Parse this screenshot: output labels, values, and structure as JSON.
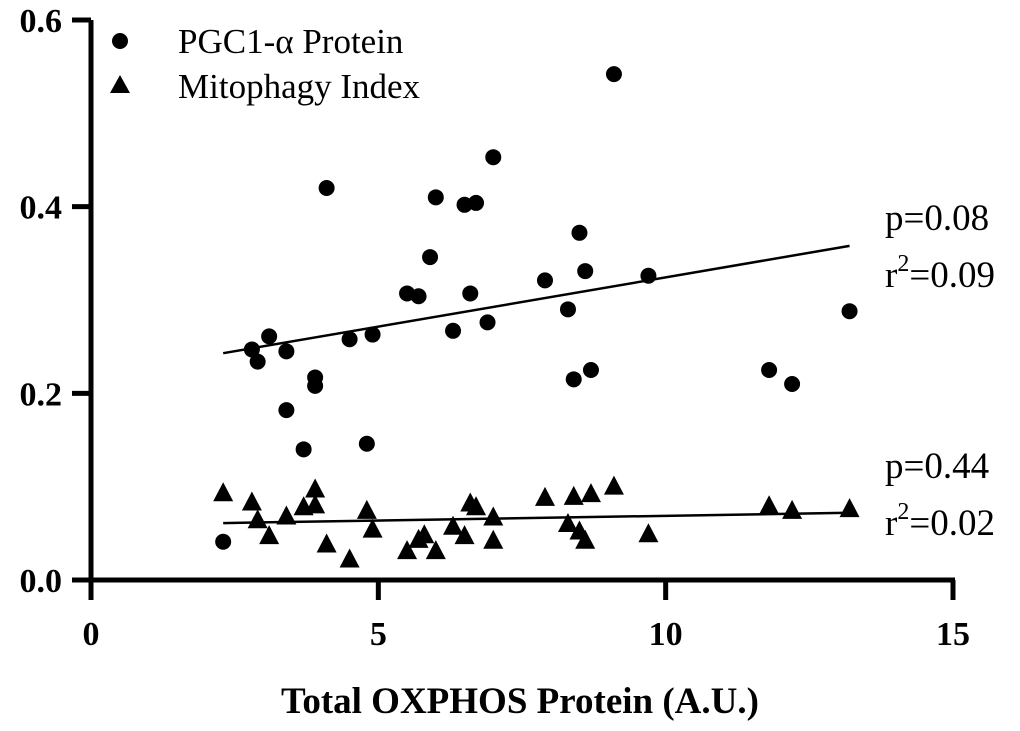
{
  "chart_data": {
    "type": "scatter",
    "title": "",
    "xlabel": "Total  OXPHOS Protein (A.U.)",
    "ylabel": "",
    "xlim": [
      0,
      15
    ],
    "ylim": [
      0,
      0.6
    ],
    "x_ticks": [
      "0",
      "5",
      "10",
      "15"
    ],
    "y_ticks": [
      "0.0",
      "0.2",
      "0.4",
      "0.6"
    ],
    "legend": {
      "placement": "top-left"
    },
    "series": [
      {
        "name": "PGC1-α Protein",
        "marker": "circle",
        "points": [
          [
            2.3,
            0.041
          ],
          [
            2.8,
            0.247
          ],
          [
            2.9,
            0.234
          ],
          [
            3.1,
            0.261
          ],
          [
            3.4,
            0.245
          ],
          [
            3.4,
            0.182
          ],
          [
            3.7,
            0.14
          ],
          [
            3.9,
            0.217
          ],
          [
            3.9,
            0.208
          ],
          [
            4.1,
            0.42
          ],
          [
            4.5,
            0.258
          ],
          [
            4.8,
            0.146
          ],
          [
            4.9,
            0.263
          ],
          [
            5.5,
            0.307
          ],
          [
            5.7,
            0.304
          ],
          [
            5.9,
            0.346
          ],
          [
            6.0,
            0.41
          ],
          [
            6.3,
            0.267
          ],
          [
            6.5,
            0.402
          ],
          [
            6.6,
            0.307
          ],
          [
            6.7,
            0.404
          ],
          [
            6.9,
            0.276
          ],
          [
            7.0,
            0.453
          ],
          [
            7.9,
            0.321
          ],
          [
            8.3,
            0.29
          ],
          [
            8.4,
            0.215
          ],
          [
            8.5,
            0.372
          ],
          [
            8.6,
            0.331
          ],
          [
            8.7,
            0.225
          ],
          [
            9.1,
            0.542
          ],
          [
            9.7,
            0.326
          ],
          [
            11.8,
            0.225
          ],
          [
            12.2,
            0.21
          ],
          [
            13.2,
            0.288
          ]
        ],
        "trendline": {
          "x": [
            2.3,
            13.2
          ],
          "y": [
            0.243,
            0.358
          ]
        },
        "stats": {
          "p": "p=0.08",
          "r2_prefix": "r",
          "r2_exp": "2",
          "r2_value": "=0.09"
        }
      },
      {
        "name": "Mitophagy Index",
        "marker": "triangle",
        "points": [
          [
            2.3,
            0.093
          ],
          [
            2.8,
            0.083
          ],
          [
            2.9,
            0.064
          ],
          [
            3.1,
            0.047
          ],
          [
            3.4,
            0.068
          ],
          [
            3.7,
            0.078
          ],
          [
            3.9,
            0.08
          ],
          [
            3.9,
            0.097
          ],
          [
            4.1,
            0.038
          ],
          [
            4.5,
            0.022
          ],
          [
            4.8,
            0.074
          ],
          [
            4.9,
            0.054
          ],
          [
            5.5,
            0.031
          ],
          [
            5.7,
            0.043
          ],
          [
            5.8,
            0.048
          ],
          [
            6.0,
            0.031
          ],
          [
            6.3,
            0.057
          ],
          [
            6.5,
            0.047
          ],
          [
            6.6,
            0.082
          ],
          [
            6.7,
            0.078
          ],
          [
            7.0,
            0.067
          ],
          [
            7.0,
            0.042
          ],
          [
            7.9,
            0.088
          ],
          [
            8.3,
            0.06
          ],
          [
            8.4,
            0.089
          ],
          [
            8.5,
            0.052
          ],
          [
            8.6,
            0.042
          ],
          [
            8.7,
            0.092
          ],
          [
            9.1,
            0.1
          ],
          [
            9.7,
            0.049
          ],
          [
            11.8,
            0.079
          ],
          [
            12.2,
            0.074
          ],
          [
            13.2,
            0.076
          ]
        ],
        "trendline": {
          "x": [
            2.3,
            13.2
          ],
          "y": [
            0.061,
            0.072
          ]
        },
        "stats": {
          "p": "p=0.44",
          "r2_prefix": "r",
          "r2_exp": "2",
          "r2_value": "=0.02"
        }
      }
    ]
  }
}
